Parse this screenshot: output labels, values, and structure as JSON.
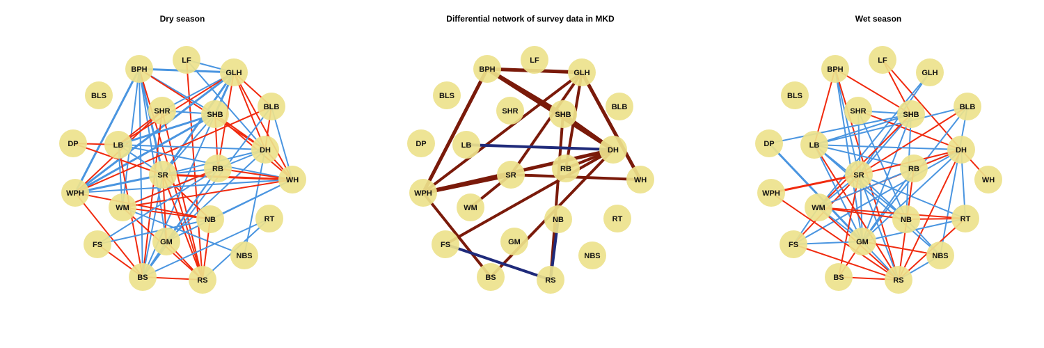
{
  "colors": {
    "node_fill": "#ede28c",
    "positive_edge": "#f02a0e",
    "negative_edge": "#4a95e0",
    "diff_positive_edge": "#7a1a0a",
    "diff_negative_edge": "#1f2a7a"
  },
  "panels": [
    {
      "id": "dry",
      "title": "Dry season",
      "edges": [
        [
          "BPH",
          "GLH",
          "neg",
          3
        ],
        [
          "BPH",
          "SHB",
          "neg",
          2
        ],
        [
          "BPH",
          "SR",
          "neg",
          3
        ],
        [
          "BPH",
          "WPH",
          "neg",
          3
        ],
        [
          "BPH",
          "BS",
          "neg",
          2
        ],
        [
          "BPH",
          "WM",
          "neg",
          2
        ],
        [
          "BPH",
          "DH",
          "pos",
          2
        ],
        [
          "BPH",
          "RS",
          "pos",
          2
        ],
        [
          "BPH",
          "GM",
          "neg",
          2
        ],
        [
          "LF",
          "GLH",
          "neg",
          2
        ],
        [
          "LF",
          "DH",
          "neg",
          2
        ],
        [
          "LF",
          "RS",
          "pos",
          2
        ],
        [
          "GLH",
          "SHR",
          "neg",
          2
        ],
        [
          "GLH",
          "SHB",
          "neg",
          3
        ],
        [
          "GLH",
          "LB",
          "pos",
          2
        ],
        [
          "GLH",
          "WPH",
          "neg",
          3
        ],
        [
          "GLH",
          "SR",
          "neg",
          3
        ],
        [
          "GLH",
          "RB",
          "pos",
          2
        ],
        [
          "GLH",
          "WH",
          "pos",
          2
        ],
        [
          "GLH",
          "BLB",
          "pos",
          2
        ],
        [
          "GLH",
          "DH",
          "pos",
          2
        ],
        [
          "SHR",
          "SHB",
          "neg",
          2
        ],
        [
          "SHR",
          "WPH",
          "pos",
          2
        ],
        [
          "SHR",
          "BS",
          "pos",
          2
        ],
        [
          "SHR",
          "LB",
          "pos",
          2
        ],
        [
          "SHR",
          "RS",
          "pos",
          2
        ],
        [
          "SHB",
          "LB",
          "neg",
          3
        ],
        [
          "SHB",
          "WPH",
          "neg",
          3
        ],
        [
          "SHB",
          "SR",
          "neg",
          2
        ],
        [
          "SHB",
          "DH",
          "pos",
          2
        ],
        [
          "SHB",
          "WH",
          "pos",
          2
        ],
        [
          "SHB",
          "BS",
          "neg",
          2
        ],
        [
          "SHB",
          "RB",
          "pos",
          2
        ],
        [
          "BLB",
          "WPH",
          "pos",
          2
        ],
        [
          "BLB",
          "DH",
          "pos",
          2
        ],
        [
          "BLB",
          "WH",
          "neg",
          2
        ],
        [
          "BLB",
          "BS",
          "neg",
          2
        ],
        [
          "DP",
          "LB",
          "pos",
          2
        ],
        [
          "DP",
          "SR",
          "pos",
          2
        ],
        [
          "LB",
          "SR",
          "neg",
          2
        ],
        [
          "LB",
          "WH",
          "neg",
          2
        ],
        [
          "LB",
          "BS",
          "pos",
          2
        ],
        [
          "LB",
          "WM",
          "neg",
          2
        ],
        [
          "LB",
          "DH",
          "neg",
          2
        ],
        [
          "DH",
          "SR",
          "neg",
          2
        ],
        [
          "DH",
          "WH",
          "pos",
          2
        ],
        [
          "DH",
          "GM",
          "neg",
          2
        ],
        [
          "DH",
          "NBS",
          "neg",
          2
        ],
        [
          "DH",
          "WM",
          "neg",
          2
        ],
        [
          "SR",
          "WH",
          "pos",
          3
        ],
        [
          "SR",
          "WPH",
          "neg",
          3
        ],
        [
          "SR",
          "RB",
          "neg",
          2
        ],
        [
          "SR",
          "NB",
          "pos",
          2
        ],
        [
          "SR",
          "RS",
          "pos",
          2
        ],
        [
          "SR",
          "BS",
          "neg",
          2
        ],
        [
          "SR",
          "GM",
          "pos",
          2
        ],
        [
          "RB",
          "WH",
          "pos",
          2
        ],
        [
          "RB",
          "GM",
          "neg",
          2
        ],
        [
          "RB",
          "WM",
          "pos",
          2
        ],
        [
          "RB",
          "BS",
          "neg",
          2
        ],
        [
          "WPH",
          "WH",
          "neg",
          2
        ],
        [
          "WPH",
          "BS",
          "pos",
          2
        ],
        [
          "WPH",
          "NB",
          "pos",
          2
        ],
        [
          "WM",
          "WH",
          "pos",
          2
        ],
        [
          "WM",
          "NB",
          "pos",
          2
        ],
        [
          "WM",
          "RS",
          "pos",
          2
        ],
        [
          "WM",
          "NBS",
          "neg",
          2
        ],
        [
          "NB",
          "RS",
          "pos",
          2
        ],
        [
          "NB",
          "WH",
          "neg",
          2
        ],
        [
          "FS",
          "RB",
          "neg",
          2
        ],
        [
          "FS",
          "BS",
          "pos",
          2
        ],
        [
          "FS",
          "NB",
          "neg",
          2
        ],
        [
          "GM",
          "BS",
          "neg",
          2
        ],
        [
          "GM",
          "WH",
          "neg",
          2
        ],
        [
          "GM",
          "RS",
          "pos",
          2
        ],
        [
          "BS",
          "RS",
          "pos",
          2
        ],
        [
          "BS",
          "RT",
          "neg",
          2
        ],
        [
          "RS",
          "RT",
          "neg",
          2
        ]
      ]
    },
    {
      "id": "diff",
      "title": "Differential network of survey data in MKD",
      "edges": [
        [
          "BPH",
          "GLH",
          "dpos",
          5
        ],
        [
          "BPH",
          "DH",
          "dpos",
          6
        ],
        [
          "BPH",
          "WPH",
          "dpos",
          5
        ],
        [
          "BPH",
          "SHB",
          "dpos",
          5
        ],
        [
          "GLH",
          "WPH",
          "dpos",
          4
        ],
        [
          "GLH",
          "SR",
          "dpos",
          4
        ],
        [
          "GLH",
          "WH",
          "dpos",
          5
        ],
        [
          "GLH",
          "RB",
          "dpos",
          4
        ],
        [
          "SHB",
          "DH",
          "dpos",
          5
        ],
        [
          "SHB",
          "RS",
          "dpos",
          4
        ],
        [
          "LB",
          "DH",
          "dneg",
          4
        ],
        [
          "WPH",
          "SR",
          "dpos",
          6
        ],
        [
          "WPH",
          "DH",
          "dpos",
          5
        ],
        [
          "WPH",
          "BS",
          "dpos",
          4
        ],
        [
          "SR",
          "WH",
          "dpos",
          4
        ],
        [
          "SR",
          "WM",
          "dpos",
          4
        ],
        [
          "RB",
          "DH",
          "dpos",
          4
        ],
        [
          "DH",
          "FS",
          "dpos",
          4
        ],
        [
          "DH",
          "BS",
          "dpos",
          4
        ],
        [
          "NB",
          "RS",
          "dneg",
          4
        ],
        [
          "FS",
          "RS",
          "dneg",
          4
        ]
      ]
    },
    {
      "id": "wet",
      "title": "Wet season",
      "edges": [
        [
          "BPH",
          "SHB",
          "pos",
          2
        ],
        [
          "BPH",
          "LB",
          "pos",
          2
        ],
        [
          "BPH",
          "SR",
          "neg",
          2
        ],
        [
          "BPH",
          "GM",
          "neg",
          2
        ],
        [
          "BPH",
          "RS",
          "pos",
          2
        ],
        [
          "LF",
          "SHB",
          "pos",
          2
        ],
        [
          "LF",
          "DH",
          "pos",
          2
        ],
        [
          "GLH",
          "WM",
          "neg",
          2
        ],
        [
          "GLH",
          "SR",
          "neg",
          2
        ],
        [
          "SHR",
          "DH",
          "pos",
          2
        ],
        [
          "SHR",
          "NB",
          "neg",
          2
        ],
        [
          "SHR",
          "GM",
          "neg",
          2
        ],
        [
          "SHR",
          "SHB",
          "neg",
          2
        ],
        [
          "SHB",
          "LB",
          "neg",
          2
        ],
        [
          "SHB",
          "DP",
          "neg",
          2
        ],
        [
          "SHB",
          "SR",
          "neg",
          2
        ],
        [
          "SHB",
          "GM",
          "neg",
          2
        ],
        [
          "SHB",
          "NB",
          "neg",
          2
        ],
        [
          "SHB",
          "WM",
          "pos",
          2
        ],
        [
          "BLB",
          "LB",
          "neg",
          2
        ],
        [
          "BLB",
          "SR",
          "pos",
          2
        ],
        [
          "BLB",
          "GM",
          "neg",
          2
        ],
        [
          "BLB",
          "NBS",
          "neg",
          2
        ],
        [
          "LB",
          "DH",
          "neg",
          2
        ],
        [
          "LB",
          "RB",
          "neg",
          2
        ],
        [
          "LB",
          "NB",
          "neg",
          2
        ],
        [
          "LB",
          "GM",
          "neg",
          2
        ],
        [
          "LB",
          "RS",
          "pos",
          2
        ],
        [
          "LB",
          "NBS",
          "neg",
          2
        ],
        [
          "DP",
          "GM",
          "neg",
          3
        ],
        [
          "DH",
          "RB",
          "neg",
          2
        ],
        [
          "DH",
          "SR",
          "pos",
          2
        ],
        [
          "DH",
          "WH",
          "pos",
          2
        ],
        [
          "DH",
          "RT",
          "neg",
          2
        ],
        [
          "DH",
          "WM",
          "pos",
          2
        ],
        [
          "DH",
          "FS",
          "neg",
          2
        ],
        [
          "DH",
          "GM",
          "neg",
          2
        ],
        [
          "DH",
          "RS",
          "pos",
          2
        ],
        [
          "SR",
          "WPH",
          "pos",
          3
        ],
        [
          "SR",
          "WM",
          "neg",
          2
        ],
        [
          "SR",
          "RT",
          "neg",
          2
        ],
        [
          "SR",
          "NB",
          "neg",
          2
        ],
        [
          "SR",
          "BS",
          "pos",
          2
        ],
        [
          "SR",
          "FS",
          "pos",
          2
        ],
        [
          "SR",
          "RS",
          "neg",
          2
        ],
        [
          "RB",
          "GM",
          "neg",
          2
        ],
        [
          "RB",
          "RS",
          "pos",
          2
        ],
        [
          "RB",
          "WM",
          "neg",
          2
        ],
        [
          "WM",
          "NB",
          "pos",
          2
        ],
        [
          "WM",
          "RT",
          "pos",
          2
        ],
        [
          "WM",
          "RS",
          "pos",
          2
        ],
        [
          "WM",
          "GM",
          "neg",
          2
        ],
        [
          "WM",
          "FS",
          "neg",
          2
        ],
        [
          "WPH",
          "RS",
          "pos",
          2
        ],
        [
          "NB",
          "NBS",
          "neg",
          2
        ],
        [
          "NB",
          "RT",
          "pos",
          2
        ],
        [
          "FS",
          "GM",
          "neg",
          2
        ],
        [
          "FS",
          "RS",
          "pos",
          2
        ],
        [
          "GM",
          "RT",
          "neg",
          2
        ],
        [
          "GM",
          "NBS",
          "pos",
          2
        ],
        [
          "GM",
          "RS",
          "neg",
          2
        ],
        [
          "GM",
          "BS",
          "pos",
          2
        ],
        [
          "BS",
          "RS",
          "pos",
          2
        ],
        [
          "RS",
          "RT",
          "pos",
          2
        ],
        [
          "RS",
          "NBS",
          "neg",
          2
        ]
      ]
    }
  ],
  "nodes": [
    "BPH",
    "LF",
    "GLH",
    "BLS",
    "SHR",
    "SHB",
    "BLB",
    "DP",
    "LB",
    "DH",
    "SR",
    "RB",
    "WH",
    "WPH",
    "WM",
    "NB",
    "RT",
    "FS",
    "GM",
    "NBS",
    "BS",
    "RS"
  ]
}
